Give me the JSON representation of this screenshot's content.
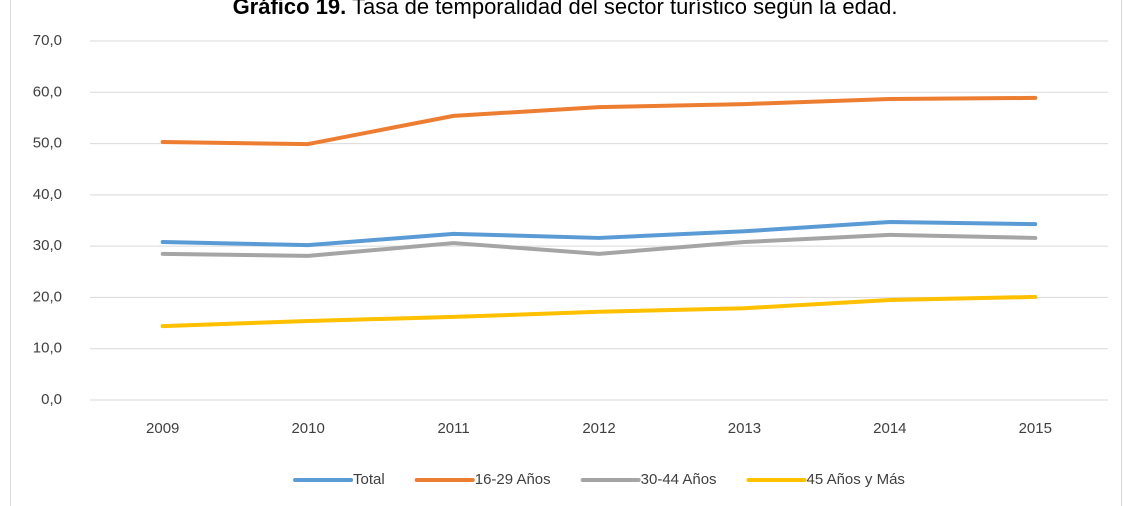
{
  "chart_data": {
    "type": "line",
    "title_label": "Gráfico 19.",
    "title": "Tasa de temporalidad del sector turístico según la edad.",
    "categories": [
      "2009",
      "2010",
      "2011",
      "2012",
      "2013",
      "2014",
      "2015"
    ],
    "series": [
      {
        "name": "Total",
        "color": "#5b9bd5",
        "values": [
          30.8,
          30.2,
          32.4,
          31.6,
          32.9,
          34.7,
          34.3
        ]
      },
      {
        "name": "16-29 Años",
        "color": "#ed7d31",
        "values": [
          50.3,
          49.9,
          55.4,
          57.1,
          57.7,
          58.7,
          58.9
        ]
      },
      {
        "name": "30-44 Años",
        "color": "#a5a5a5",
        "values": [
          28.5,
          28.1,
          30.6,
          28.5,
          30.8,
          32.2,
          31.6
        ]
      },
      {
        "name": "45 Años y Más",
        "color": "#ffc000",
        "values": [
          14.4,
          15.4,
          16.2,
          17.2,
          17.9,
          19.5,
          20.1
        ]
      }
    ],
    "ylim": [
      0,
      70
    ],
    "yticks": [
      {
        "value": 0,
        "label": "0,0"
      },
      {
        "value": 10,
        "label": "10,0"
      },
      {
        "value": 20,
        "label": "20,0"
      },
      {
        "value": 30,
        "label": "30,0"
      },
      {
        "value": 40,
        "label": "40,0"
      },
      {
        "value": 50,
        "label": "50,0"
      },
      {
        "value": 60,
        "label": "60,0"
      },
      {
        "value": 70,
        "label": "70,0"
      }
    ],
    "grid": true,
    "legend": "bottom"
  }
}
